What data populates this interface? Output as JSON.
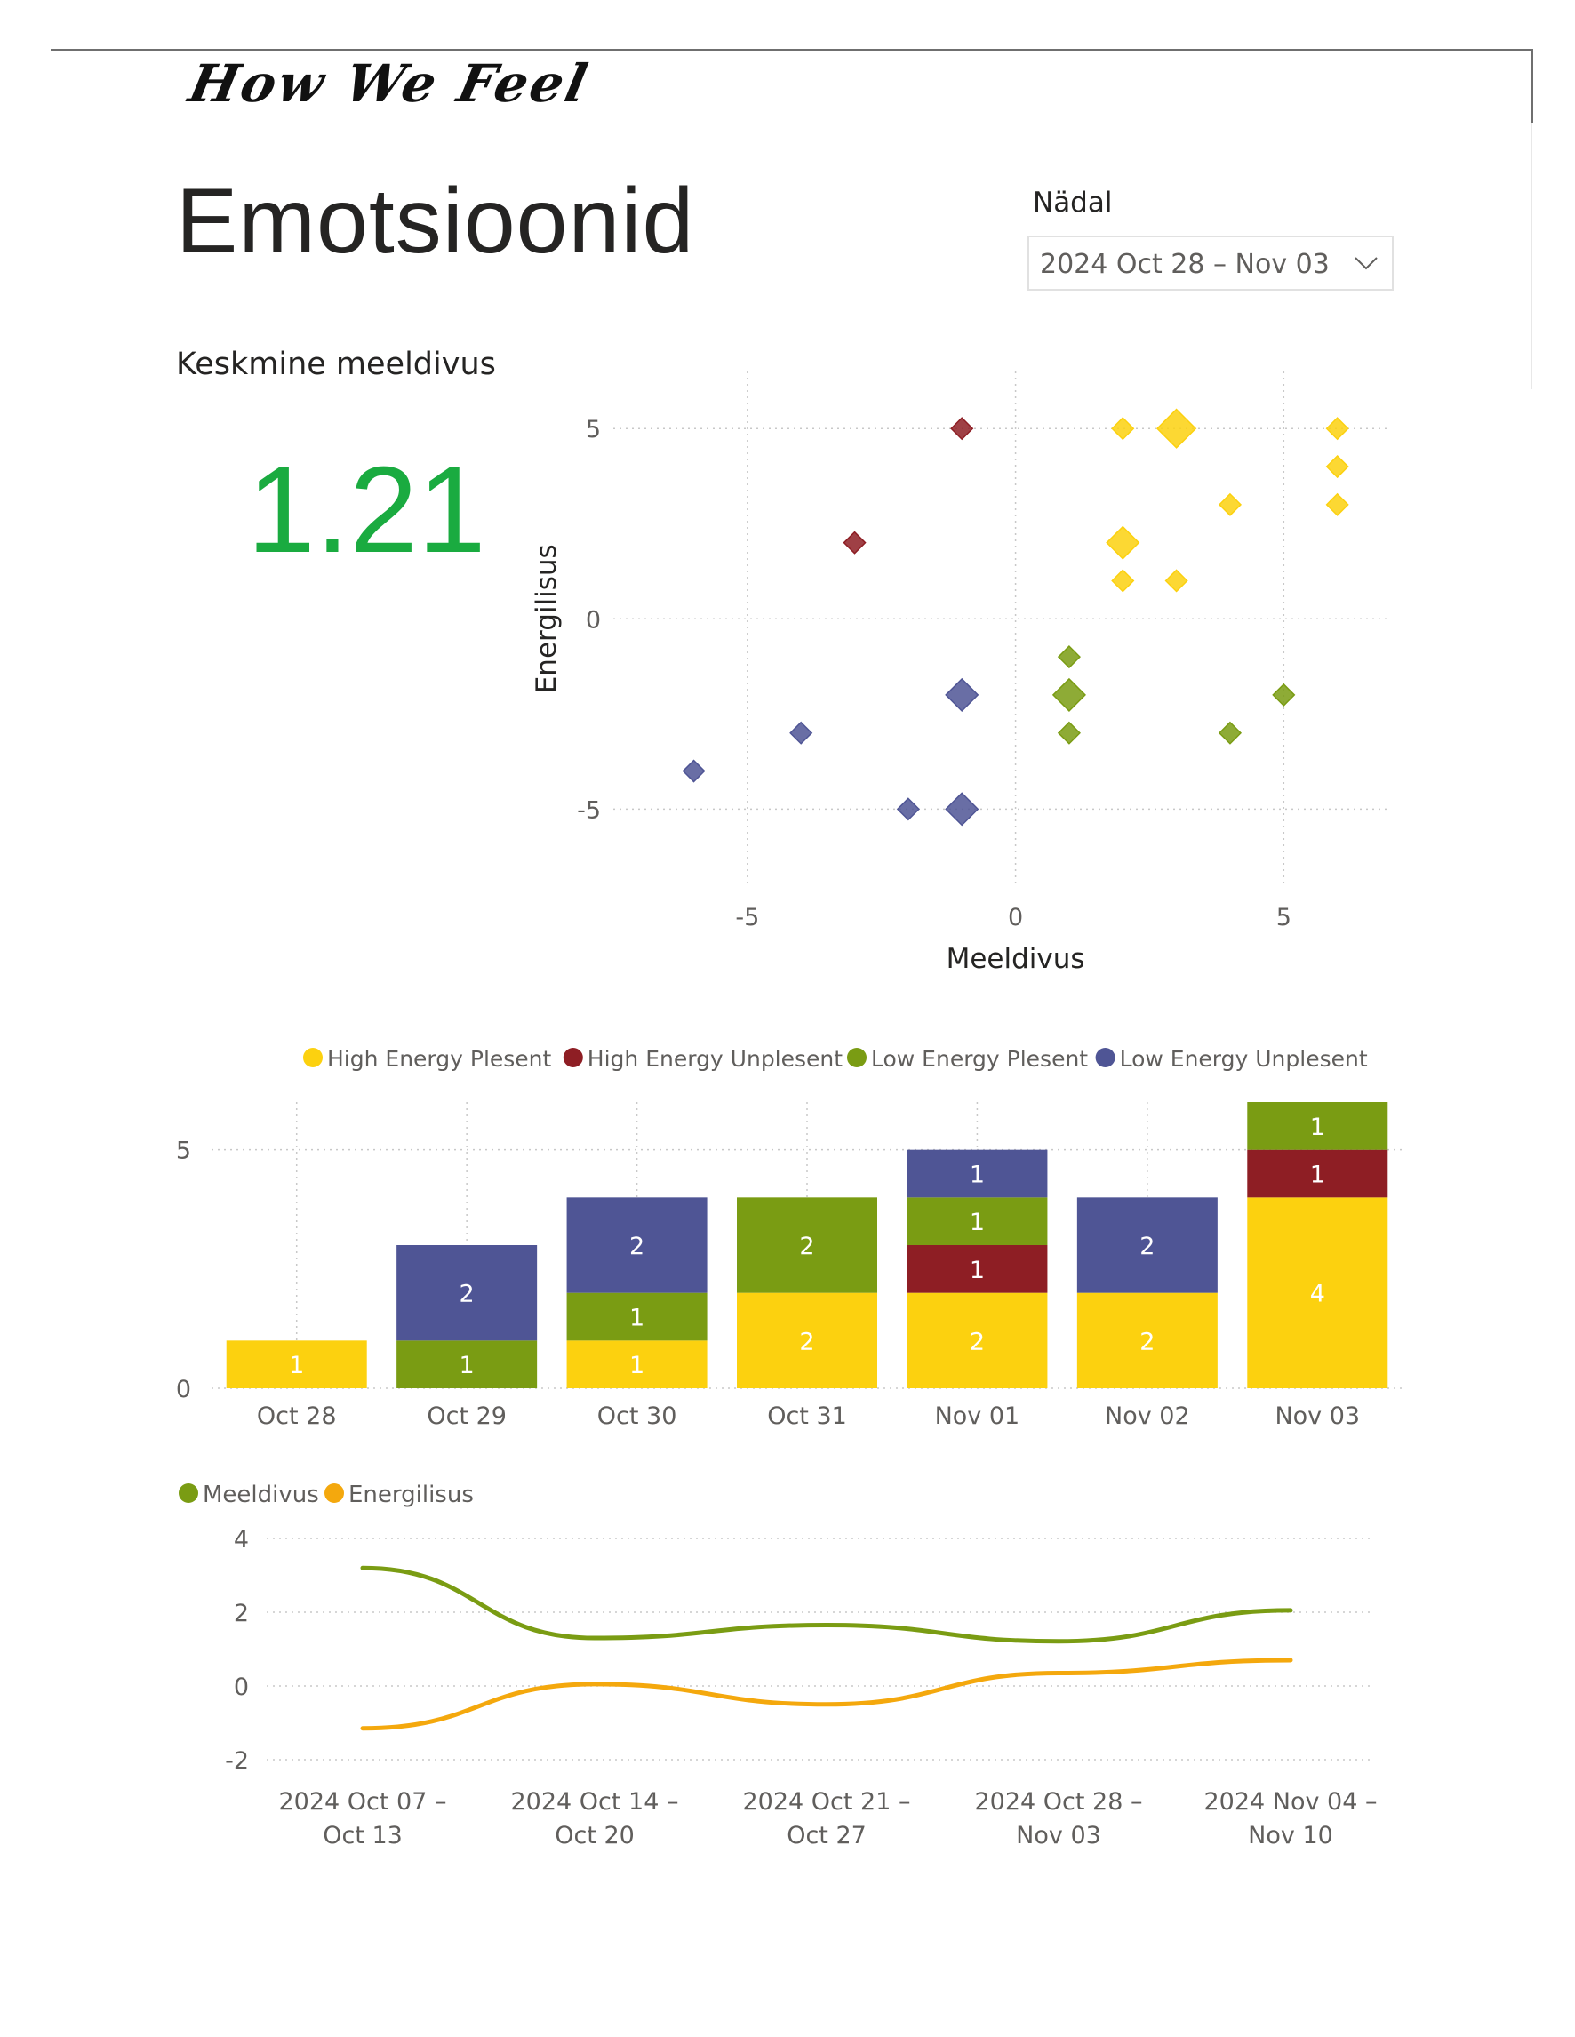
{
  "logo": "How We Feel",
  "page_title": "Emotsioonid",
  "slicer": {
    "label": "Nädal",
    "value": "2024 Oct 28 – Nov 03"
  },
  "kpi": {
    "label": "Keskmine meeldivus",
    "value": "1.21"
  },
  "colors": {
    "high_energy_plesent": "#fcd10f",
    "high_energy_unplesent": "#8e1e24",
    "low_energy_plesent": "#7a9c13",
    "low_energy_unplesent": "#4f5595",
    "meeldivus": "#7a9c13",
    "energilisus": "#f4a80d",
    "kpi": "#1aab40"
  },
  "chart_data": [
    {
      "type": "scatter",
      "xlabel": "Meeldivus",
      "ylabel": "Energilisus",
      "xlim": [
        -7.5,
        7
      ],
      "ylim": [
        -7,
        6.5
      ],
      "x_ticks": [
        -5,
        0,
        5
      ],
      "y_ticks": [
        -5,
        0,
        5
      ],
      "grid": true,
      "points": [
        {
          "x": -1,
          "y": 5,
          "cat": "high_energy_unplesent",
          "size": 1
        },
        {
          "x": -3,
          "y": 2,
          "cat": "high_energy_unplesent",
          "size": 1
        },
        {
          "x": 2,
          "y": 5,
          "cat": "high_energy_plesent",
          "size": 1
        },
        {
          "x": 3,
          "y": 5,
          "cat": "high_energy_plesent",
          "size": 2
        },
        {
          "x": 6,
          "y": 5,
          "cat": "high_energy_plesent",
          "size": 1
        },
        {
          "x": 6,
          "y": 4,
          "cat": "high_energy_plesent",
          "size": 1
        },
        {
          "x": 4,
          "y": 3,
          "cat": "high_energy_plesent",
          "size": 1
        },
        {
          "x": 6,
          "y": 3,
          "cat": "high_energy_plesent",
          "size": 1
        },
        {
          "x": 2,
          "y": 2,
          "cat": "high_energy_plesent",
          "size": 1.6
        },
        {
          "x": 2,
          "y": 1,
          "cat": "high_energy_plesent",
          "size": 1
        },
        {
          "x": 3,
          "y": 1,
          "cat": "high_energy_plesent",
          "size": 1
        },
        {
          "x": 1,
          "y": -1,
          "cat": "low_energy_plesent",
          "size": 1
        },
        {
          "x": 1,
          "y": -2,
          "cat": "low_energy_plesent",
          "size": 1.6
        },
        {
          "x": 5,
          "y": -2,
          "cat": "low_energy_plesent",
          "size": 1
        },
        {
          "x": 1,
          "y": -3,
          "cat": "low_energy_plesent",
          "size": 1
        },
        {
          "x": 4,
          "y": -3,
          "cat": "low_energy_plesent",
          "size": 1
        },
        {
          "x": -1,
          "y": -2,
          "cat": "low_energy_unplesent",
          "size": 1.6
        },
        {
          "x": -4,
          "y": -3,
          "cat": "low_energy_unplesent",
          "size": 1
        },
        {
          "x": -6,
          "y": -4,
          "cat": "low_energy_unplesent",
          "size": 1
        },
        {
          "x": -2,
          "y": -5,
          "cat": "low_energy_unplesent",
          "size": 1
        },
        {
          "x": -1,
          "y": -5,
          "cat": "low_energy_unplesent",
          "size": 1.6
        }
      ]
    },
    {
      "type": "bar",
      "stacked": true,
      "legend_position": "top",
      "categories": [
        "Oct 28",
        "Oct 29",
        "Oct 30",
        "Oct 31",
        "Nov 01",
        "Nov 02",
        "Nov 03"
      ],
      "ylim": [
        0,
        6
      ],
      "y_ticks": [
        0,
        5
      ],
      "grid": true,
      "series": [
        {
          "name": "High Energy Plesent",
          "key": "high_energy_plesent",
          "values": [
            1,
            0,
            1,
            2,
            2,
            2,
            4
          ]
        },
        {
          "name": "High Energy Unplesent",
          "key": "high_energy_unplesent",
          "values": [
            0,
            0,
            0,
            0,
            1,
            0,
            1
          ]
        },
        {
          "name": "Low Energy Plesent",
          "key": "low_energy_plesent",
          "values": [
            0,
            1,
            1,
            2,
            1,
            0,
            1
          ]
        },
        {
          "name": "Low Energy Unplesent",
          "key": "low_energy_unplesent",
          "values": [
            0,
            2,
            2,
            0,
            1,
            2,
            0
          ]
        }
      ],
      "stack_order": [
        "high_energy_plesent",
        "high_energy_unplesent",
        "low_energy_plesent",
        "low_energy_unplesent"
      ]
    },
    {
      "type": "line",
      "legend_position": "top-left",
      "categories": [
        [
          "2024 Oct 07 –",
          "Oct 13"
        ],
        [
          "2024 Oct 14 –",
          "Oct 20"
        ],
        [
          "2024 Oct 21 –",
          "Oct 27"
        ],
        [
          "2024 Oct 28 –",
          "Nov 03"
        ],
        [
          "2024 Nov 04 –",
          "Nov 10"
        ]
      ],
      "ylim": [
        -2,
        4
      ],
      "y_ticks": [
        4,
        2,
        0,
        -2
      ],
      "grid": true,
      "series": [
        {
          "name": "Meeldivus",
          "key": "meeldivus",
          "values": [
            3.2,
            1.3,
            1.65,
            1.21,
            2.05
          ]
        },
        {
          "name": "Energilisus",
          "key": "energilisus",
          "values": [
            -1.15,
            0.05,
            -0.5,
            0.35,
            0.7
          ]
        }
      ]
    }
  ]
}
